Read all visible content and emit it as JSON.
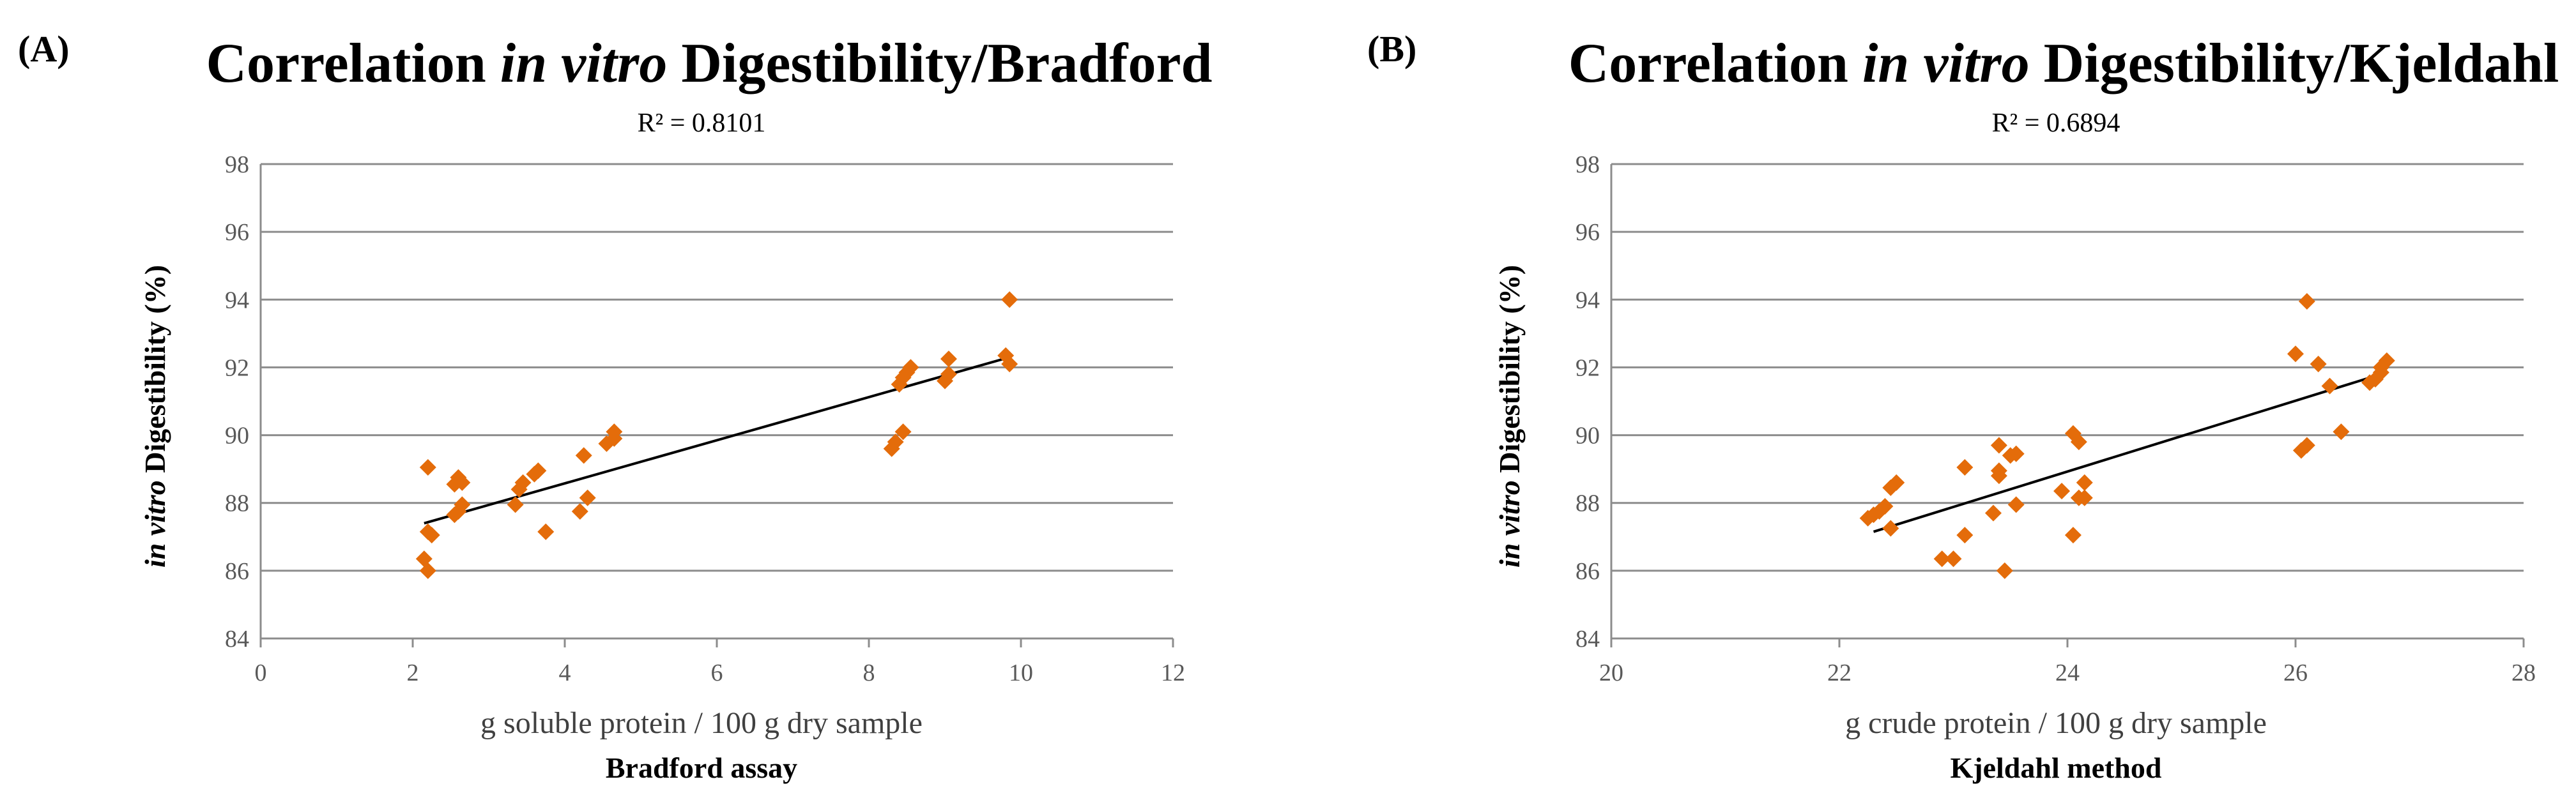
{
  "colors": {
    "marker": "#E46C0A",
    "trendline": "#000000",
    "grid": "#8C8C8C"
  },
  "chart_data": [
    {
      "type": "scatter",
      "panel_label": "(A)",
      "title_parts": {
        "prefix": "Correlation ",
        "italic": "in vitro",
        "suffix": " Digestibility/Bradford"
      },
      "r2_text": "R² = 0.8101",
      "xlabel": "g soluble protein / 100 g dry sample",
      "method_label": "Bradford assay",
      "ylabel_parts": {
        "italic": "in vitro",
        "rest": " Digestibility (%)"
      },
      "xlim": [
        0,
        12
      ],
      "ylim": [
        84,
        98
      ],
      "xticks": [
        0,
        2,
        4,
        6,
        8,
        10,
        12
      ],
      "yticks": [
        84,
        86,
        88,
        90,
        92,
        94,
        96,
        98
      ],
      "grid": true,
      "trendline": {
        "x": [
          2.15,
          9.85
        ],
        "y": [
          87.4,
          92.3
        ]
      },
      "x": [
        2.2,
        2.2,
        2.25,
        2.15,
        2.2,
        2.55,
        2.6,
        2.65,
        2.55,
        2.6,
        2.65,
        3.35,
        3.4,
        3.45,
        3.6,
        3.65,
        3.75,
        4.2,
        4.25,
        4.3,
        4.55,
        4.65,
        4.65,
        8.3,
        8.35,
        8.4,
        8.45,
        8.45,
        8.5,
        8.55,
        9.0,
        9.05,
        9.05,
        9.8,
        9.85,
        9.85
      ],
      "y": [
        89.05,
        87.15,
        87.05,
        86.35,
        86.0,
        87.65,
        87.75,
        87.95,
        88.55,
        88.75,
        88.6,
        87.95,
        88.4,
        88.6,
        88.85,
        88.95,
        87.15,
        87.75,
        89.4,
        88.15,
        89.75,
        89.9,
        90.1,
        89.6,
        89.8,
        91.5,
        90.1,
        91.7,
        91.85,
        92.0,
        91.6,
        91.8,
        92.25,
        92.35,
        92.1,
        94.0
      ]
    },
    {
      "type": "scatter",
      "panel_label": "(B)",
      "title_parts": {
        "prefix": "Correlation ",
        "italic": "in vitro",
        "suffix": " Digestibility/Kjeldahl"
      },
      "r2_text": "R² = 0.6894",
      "xlabel": "g crude protein / 100 g dry sample",
      "method_label": "Kjeldahl method",
      "ylabel_parts": {
        "italic": "in vitro",
        "rest": " Digestibility (%)"
      },
      "xlim": [
        20,
        28
      ],
      "ylim": [
        84,
        98
      ],
      "xticks": [
        20,
        22,
        24,
        26,
        28
      ],
      "yticks": [
        84,
        86,
        88,
        90,
        92,
        94,
        96,
        98
      ],
      "grid": true,
      "trendline": {
        "x": [
          22.3,
          26.75
        ],
        "y": [
          87.15,
          91.8
        ]
      },
      "x": [
        22.25,
        22.3,
        22.35,
        22.4,
        22.45,
        22.45,
        22.5,
        22.9,
        23.0,
        23.1,
        23.1,
        23.35,
        23.4,
        23.4,
        23.4,
        23.45,
        23.5,
        23.55,
        23.55,
        23.95,
        24.05,
        24.05,
        24.1,
        24.1,
        24.15,
        24.15,
        26.0,
        26.05,
        26.1,
        26.1,
        26.2,
        26.3,
        26.4,
        26.65,
        26.7,
        26.75,
        26.75,
        26.8
      ],
      "y": [
        87.55,
        87.65,
        87.75,
        87.9,
        87.25,
        88.45,
        88.6,
        86.35,
        86.35,
        87.05,
        89.05,
        87.7,
        88.8,
        88.95,
        89.7,
        86.0,
        89.4,
        87.95,
        89.45,
        88.35,
        87.05,
        90.05,
        89.8,
        88.15,
        88.6,
        88.15,
        92.4,
        89.55,
        89.7,
        93.95,
        92.1,
        91.45,
        90.1,
        91.55,
        91.65,
        91.85,
        92.0,
        92.2
      ]
    }
  ]
}
